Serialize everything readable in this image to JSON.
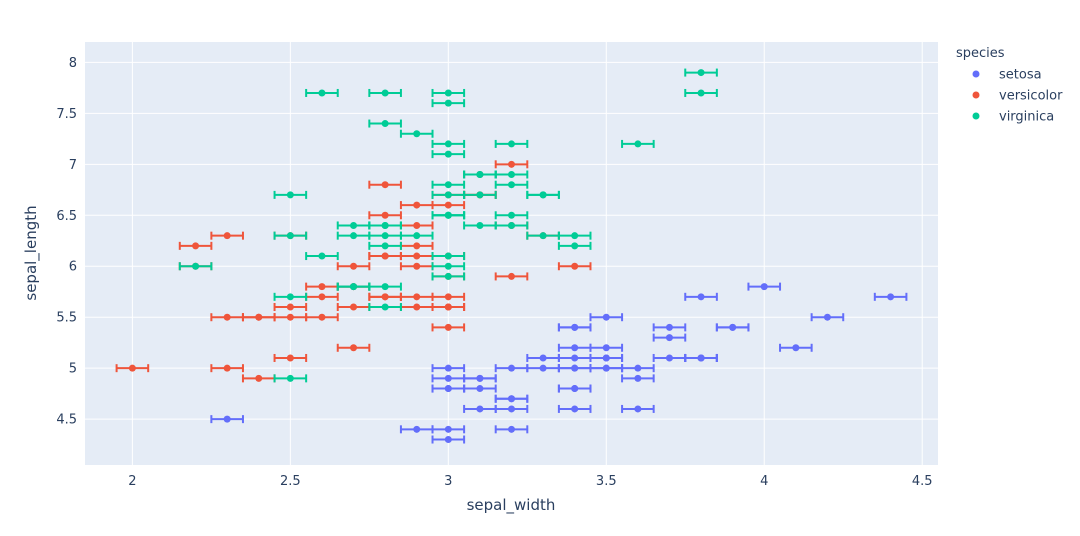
{
  "chart_data": {
    "type": "scatter",
    "xlabel": "sepal_width",
    "ylabel": "sepal_length",
    "xlim": [
      1.85,
      4.55
    ],
    "ylim": [
      4.05,
      8.2
    ],
    "x_ticks": [
      2,
      2.5,
      3,
      3.5,
      4,
      4.5
    ],
    "x_tick_labels": [
      "2",
      "2.5",
      "3",
      "3.5",
      "4",
      "4.5"
    ],
    "y_ticks": [
      4.5,
      5,
      5.5,
      6,
      6.5,
      7,
      7.5,
      8
    ],
    "y_tick_labels": [
      "4.5",
      "5",
      "5.5",
      "6",
      "6.5",
      "7",
      "7.5",
      "8"
    ],
    "grid": true,
    "error_x": 0.05,
    "legend_title": "species",
    "legend_position": "top-right",
    "plot_background": "#e5ecf6",
    "series": [
      {
        "name": "setosa",
        "color": "#636efa",
        "points": [
          [
            3.5,
            5.1
          ],
          [
            3.0,
            4.9
          ],
          [
            3.2,
            4.7
          ],
          [
            3.1,
            4.6
          ],
          [
            3.6,
            5.0
          ],
          [
            3.9,
            5.4
          ],
          [
            3.4,
            4.6
          ],
          [
            3.4,
            5.0
          ],
          [
            2.9,
            4.4
          ],
          [
            3.1,
            4.9
          ],
          [
            3.7,
            5.4
          ],
          [
            3.4,
            4.8
          ],
          [
            3.0,
            4.8
          ],
          [
            3.0,
            4.3
          ],
          [
            4.0,
            5.8
          ],
          [
            4.4,
            5.7
          ],
          [
            3.9,
            5.4
          ],
          [
            3.5,
            5.1
          ],
          [
            3.8,
            5.7
          ],
          [
            3.8,
            5.1
          ],
          [
            3.4,
            5.4
          ],
          [
            3.7,
            5.1
          ],
          [
            3.6,
            4.6
          ],
          [
            3.3,
            5.1
          ],
          [
            3.4,
            4.8
          ],
          [
            3.0,
            5.0
          ],
          [
            3.4,
            5.0
          ],
          [
            3.5,
            5.2
          ],
          [
            3.4,
            5.2
          ],
          [
            3.2,
            4.7
          ],
          [
            3.1,
            4.8
          ],
          [
            3.4,
            5.4
          ],
          [
            4.1,
            5.2
          ],
          [
            4.2,
            5.5
          ],
          [
            3.1,
            4.9
          ],
          [
            3.2,
            5.0
          ],
          [
            3.5,
            5.5
          ],
          [
            3.6,
            4.9
          ],
          [
            3.0,
            4.4
          ],
          [
            3.4,
            5.1
          ],
          [
            3.5,
            5.0
          ],
          [
            2.3,
            4.5
          ],
          [
            3.2,
            4.4
          ],
          [
            3.5,
            5.0
          ],
          [
            3.8,
            5.1
          ],
          [
            3.0,
            4.8
          ],
          [
            3.8,
            5.1
          ],
          [
            3.2,
            4.6
          ],
          [
            3.7,
            5.3
          ],
          [
            3.3,
            5.0
          ]
        ]
      },
      {
        "name": "versicolor",
        "color": "#ef553b",
        "points": [
          [
            3.2,
            7.0
          ],
          [
            3.2,
            6.4
          ],
          [
            3.1,
            6.9
          ],
          [
            2.3,
            5.5
          ],
          [
            2.8,
            6.5
          ],
          [
            2.8,
            5.7
          ],
          [
            3.3,
            6.3
          ],
          [
            2.4,
            4.9
          ],
          [
            2.9,
            6.6
          ],
          [
            2.7,
            5.2
          ],
          [
            2.0,
            5.0
          ],
          [
            3.0,
            5.9
          ],
          [
            2.2,
            6.0
          ],
          [
            2.9,
            6.1
          ],
          [
            2.9,
            5.6
          ],
          [
            3.1,
            6.7
          ],
          [
            3.0,
            5.6
          ],
          [
            2.7,
            5.8
          ],
          [
            2.2,
            6.2
          ],
          [
            2.5,
            5.6
          ],
          [
            3.2,
            5.9
          ],
          [
            2.8,
            6.1
          ],
          [
            2.5,
            6.3
          ],
          [
            2.8,
            6.1
          ],
          [
            2.9,
            6.4
          ],
          [
            3.0,
            6.6
          ],
          [
            2.8,
            6.8
          ],
          [
            3.0,
            6.7
          ],
          [
            2.9,
            6.0
          ],
          [
            2.6,
            5.7
          ],
          [
            2.4,
            5.5
          ],
          [
            2.4,
            5.5
          ],
          [
            2.7,
            5.8
          ],
          [
            2.7,
            6.0
          ],
          [
            3.0,
            5.4
          ],
          [
            3.4,
            6.0
          ],
          [
            3.1,
            6.7
          ],
          [
            2.3,
            6.3
          ],
          [
            3.0,
            5.6
          ],
          [
            2.5,
            5.5
          ],
          [
            2.6,
            5.5
          ],
          [
            3.0,
            6.1
          ],
          [
            2.6,
            5.8
          ],
          [
            2.3,
            5.0
          ],
          [
            2.7,
            5.6
          ],
          [
            3.0,
            5.7
          ],
          [
            2.9,
            5.7
          ],
          [
            2.9,
            6.2
          ],
          [
            2.5,
            5.1
          ],
          [
            2.8,
            5.7
          ]
        ]
      },
      {
        "name": "virginica",
        "color": "#00cc96",
        "points": [
          [
            3.3,
            6.3
          ],
          [
            2.7,
            5.8
          ],
          [
            3.0,
            7.1
          ],
          [
            2.9,
            6.3
          ],
          [
            3.0,
            6.5
          ],
          [
            3.0,
            7.6
          ],
          [
            2.5,
            4.9
          ],
          [
            2.9,
            7.3
          ],
          [
            2.5,
            6.7
          ],
          [
            3.6,
            7.2
          ],
          [
            3.2,
            6.5
          ],
          [
            2.7,
            6.4
          ],
          [
            3.0,
            6.8
          ],
          [
            2.5,
            5.7
          ],
          [
            2.8,
            5.8
          ],
          [
            3.2,
            6.4
          ],
          [
            3.0,
            6.5
          ],
          [
            3.8,
            7.7
          ],
          [
            2.6,
            7.7
          ],
          [
            2.2,
            6.0
          ],
          [
            3.2,
            6.9
          ],
          [
            2.8,
            5.6
          ],
          [
            2.8,
            7.7
          ],
          [
            2.7,
            6.3
          ],
          [
            3.3,
            6.7
          ],
          [
            3.2,
            7.2
          ],
          [
            2.8,
            6.2
          ],
          [
            3.0,
            6.1
          ],
          [
            2.8,
            6.4
          ],
          [
            3.0,
            7.2
          ],
          [
            2.8,
            7.4
          ],
          [
            3.8,
            7.9
          ],
          [
            2.8,
            6.4
          ],
          [
            2.8,
            6.3
          ],
          [
            2.6,
            6.1
          ],
          [
            3.0,
            7.7
          ],
          [
            3.4,
            6.3
          ],
          [
            3.1,
            6.4
          ],
          [
            3.0,
            6.0
          ],
          [
            3.1,
            6.9
          ],
          [
            3.1,
            6.7
          ],
          [
            3.1,
            6.9
          ],
          [
            2.7,
            5.8
          ],
          [
            3.2,
            6.8
          ],
          [
            3.3,
            6.7
          ],
          [
            3.0,
            6.7
          ],
          [
            2.5,
            6.3
          ],
          [
            3.0,
            6.5
          ],
          [
            3.4,
            6.2
          ],
          [
            3.0,
            5.9
          ]
        ]
      }
    ]
  }
}
